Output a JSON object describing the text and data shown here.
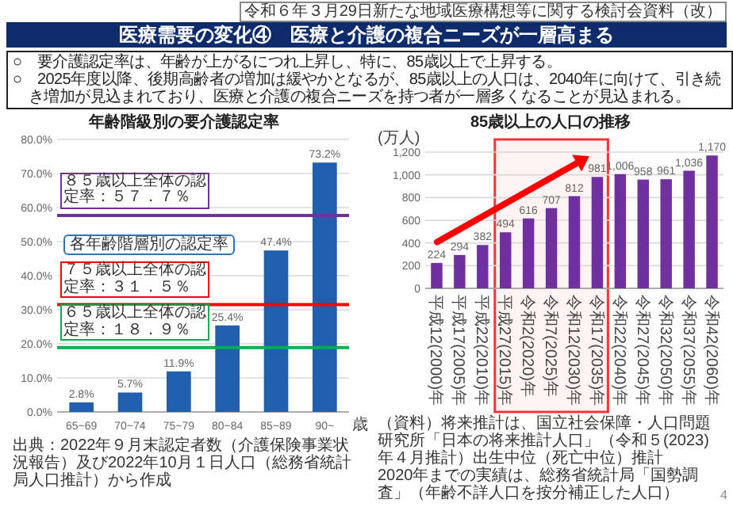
{
  "chart_data": [
    {
      "type": "bar",
      "title": "年齢階級別の要介護認定率",
      "xlabel": "歳",
      "categories": [
        "65~69",
        "70~74",
        "75~79",
        "80~84",
        "85~89",
        "90~"
      ],
      "values": [
        2.8,
        5.7,
        11.9,
        25.4,
        47.4,
        73.2
      ],
      "value_labels": [
        "2.8%",
        "5.7%",
        "11.9%",
        "25.4%",
        "47.4%",
        "73.2%"
      ],
      "color": "#1f5fae",
      "ylim": [
        0,
        80
      ],
      "yticks": [
        {
          "value": 0,
          "label": "0.0%"
        },
        {
          "value": 10,
          "label": "10.0%"
        },
        {
          "value": 20,
          "label": "20.0%"
        },
        {
          "value": 30,
          "label": "30.0%"
        },
        {
          "value": 40,
          "label": "40.0%"
        },
        {
          "value": 50,
          "label": "50.0%"
        },
        {
          "value": 60,
          "label": "60.0%"
        },
        {
          "value": 70,
          "label": "70.0%"
        },
        {
          "value": 80,
          "label": "80.0%"
        }
      ],
      "grid": "y",
      "ref_lines": [
        {
          "axis": "y",
          "value": 57.7,
          "label": "８５歳以上全体の認定率：５７．７％",
          "color": "#7030a0"
        },
        {
          "axis": "y",
          "value": 31.5,
          "label": "７５歳以上全体の認定率：３１．５％",
          "color": "#ff0000"
        },
        {
          "axis": "y",
          "value": 18.9,
          "label": "６５歳以上全体の認定率：１８．９％",
          "color": "#00b050"
        }
      ],
      "annotations": [
        "令和６年３月29日新たな地域医療構想等に関する検討会資料（改）",
        "医療需要の変化④　医療と介護の複合ニーズが一層高まる",
        "○　要介護認定率は、年齢が上がるにつれ上昇し、特に、85歳以上で上昇する。",
        "○　2025年度以降、後期高齢者の増加は緩やかとなるが、85歳以上の人口は、2040年に向けて、引き続き増加が見込まれており、医療と介護の複合ニーズを持つ者が一層多くなることが見込まれる。",
        "各年齢階層別の認定率",
        "出典：2022年９月末認定者数（介護保険事業状況報告）及び2022年10月１日人口（総務省統計局人口推計）から作成"
      ]
    },
    {
      "type": "bar",
      "title": "85歳以上の人口の推移",
      "ylabel": "(万人)",
      "categories": [
        "平成12(2000)年",
        "平成17(2005)年",
        "平成22(2010)年",
        "平成27(2015)年",
        "令和2(2020)年",
        "令和7(2025)年",
        "令和12(2030)年",
        "令和17(2035)年",
        "令和22(2040)年",
        "令和27(2045)年",
        "令和32(2050)年",
        "令和37(2055)年",
        "令和42(2060)年"
      ],
      "values": [
        224,
        294,
        382,
        494,
        616,
        707,
        812,
        981,
        1006,
        958,
        961,
        1036,
        1170
      ],
      "value_labels": [
        "224",
        "294",
        "382",
        "494",
        "616",
        "707",
        "812",
        "981",
        "1,006",
        "958",
        "961",
        "1,036",
        "1,170"
      ],
      "color": "#7030a0",
      "ylim": [
        0,
        1200
      ],
      "yticks": [
        0,
        200,
        400,
        600,
        800,
        {
          "value": 1000,
          "label": "1,000"
        },
        {
          "value": 1200,
          "label": "1,200"
        }
      ],
      "grid": "y",
      "bands": [
        {
          "axis": "x",
          "from": "平成27(2015)年",
          "to": "令和17(2035)年",
          "color": "#ff3333"
        }
      ],
      "annotations": [
        "（資料）将来推計は、国立社会保障・人口問題研究所「日本の将来推計人口」（令和５(2023)年４月推計）出生中位（死亡中位）推計",
        "2020年までの実績は、総務省統計局「国勢調査」（年齢不詳人口を按分補正した人口）",
        "4"
      ]
    }
  ]
}
